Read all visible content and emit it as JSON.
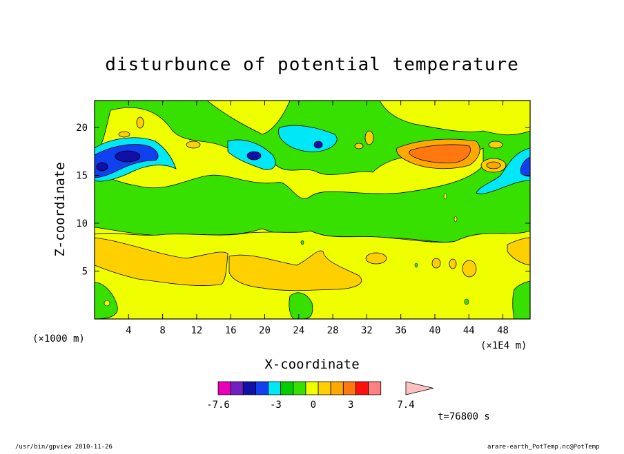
{
  "chart_data": {
    "type": "heatmap",
    "title": "disturbunce of potential temperature",
    "xlabel": "X-coordinate",
    "ylabel": "Z-coordinate",
    "x_unit_left": "(×1000 m)",
    "x_unit_right": "(×1E4 m)",
    "xlim": [
      0,
      51.2
    ],
    "ylim": [
      0,
      22.8
    ],
    "xticks": [
      4,
      8,
      12,
      16,
      20,
      24,
      28,
      32,
      36,
      40,
      44,
      48
    ],
    "yticks": [
      5,
      10,
      15,
      20
    ],
    "colorbar": {
      "levels": [
        -7.6,
        -6.6,
        -5.6,
        -4.6,
        -3.6,
        -2.6,
        -1.6,
        -0.6,
        0.4,
        1.4,
        2.4,
        3.4,
        4.4,
        5.4,
        7.4
      ],
      "tick_labels": [
        "-7.6",
        "-3",
        "0",
        "3",
        "7.4"
      ],
      "tick_values": [
        -7.6,
        -3,
        0,
        3,
        7.4
      ],
      "colors": [
        "#e800b8",
        "#7020c0",
        "#1010a8",
        "#1040f0",
        "#00e8f8",
        "#00d000",
        "#38e000",
        "#f0ff00",
        "#ffd000",
        "#ffa800",
        "#ff7810",
        "#ff1010",
        "#ff8080"
      ]
    },
    "annotation_time": "t=76800 s",
    "footer_left": "/usr/bin/gpview   2010-11-26",
    "footer_right": "arare-earth_PotTemp.nc@PotTemp",
    "regions": [
      {
        "name": "green-upper-band",
        "value": 0.0,
        "color": "#38e000"
      },
      {
        "name": "yellow-mid-band",
        "value": 1.0,
        "color": "#f0ff00"
      },
      {
        "name": "orange-low-band",
        "value": 2.0,
        "color": "#ffd000"
      },
      {
        "name": "blue-core-left",
        "value": -4.0,
        "color": "#1040f0"
      },
      {
        "name": "navy-core-left",
        "value": -5.0,
        "color": "#1010a8"
      },
      {
        "name": "cyan-lobe",
        "value": -2.0,
        "color": "#00e8f8"
      },
      {
        "name": "orange-core-right",
        "value": 3.5,
        "color": "#ffa800"
      },
      {
        "name": "red-orange-core-right",
        "value": 4.5,
        "color": "#ff7810"
      }
    ]
  }
}
